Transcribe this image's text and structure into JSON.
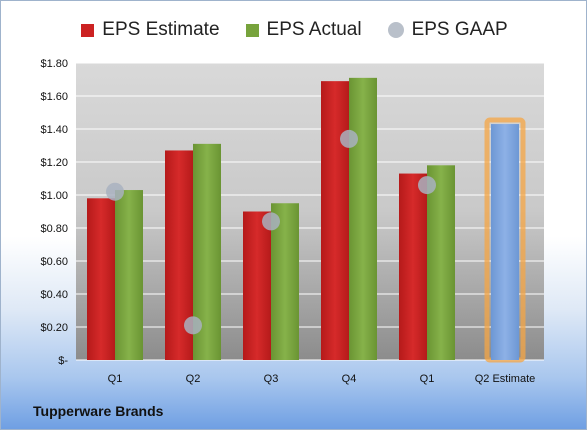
{
  "chart_data": {
    "type": "bar",
    "categories": [
      "Q1",
      "Q2",
      "Q3",
      "Q4",
      "Q1",
      "Q2 Estimate"
    ],
    "series": [
      {
        "name": "EPS Estimate",
        "color": "#cc2222",
        "values": [
          0.98,
          1.27,
          0.9,
          1.69,
          1.13,
          null
        ]
      },
      {
        "name": "EPS Actual",
        "color": "#77a33c",
        "values": [
          1.03,
          1.31,
          0.95,
          1.71,
          1.18,
          null
        ]
      },
      {
        "name": "EPS GAAP",
        "color": "#a9b2bf",
        "type": "scatter",
        "values": [
          1.02,
          0.21,
          0.84,
          1.34,
          1.06,
          null
        ]
      }
    ],
    "highlight": {
      "category": "Q2 Estimate",
      "value": 1.43,
      "color": "#7aa3dc",
      "border_color": "#f5a544"
    },
    "yticks": [
      {
        "value": 0,
        "label": "$-"
      },
      {
        "value": 0.2,
        "label": "$0.20"
      },
      {
        "value": 0.4,
        "label": "$0.40"
      },
      {
        "value": 0.6,
        "label": "$0.60"
      },
      {
        "value": 0.8,
        "label": "$0.80"
      },
      {
        "value": 1.0,
        "label": "$1.00"
      },
      {
        "value": 1.2,
        "label": "$1.20"
      },
      {
        "value": 1.4,
        "label": "$1.40"
      },
      {
        "value": 1.6,
        "label": "$1.60"
      },
      {
        "value": 1.8,
        "label": "$1.80"
      }
    ],
    "ylim": [
      0,
      1.8
    ],
    "grid": true,
    "legend_position": "top"
  },
  "footer": {
    "company": "Tupperware Brands"
  }
}
